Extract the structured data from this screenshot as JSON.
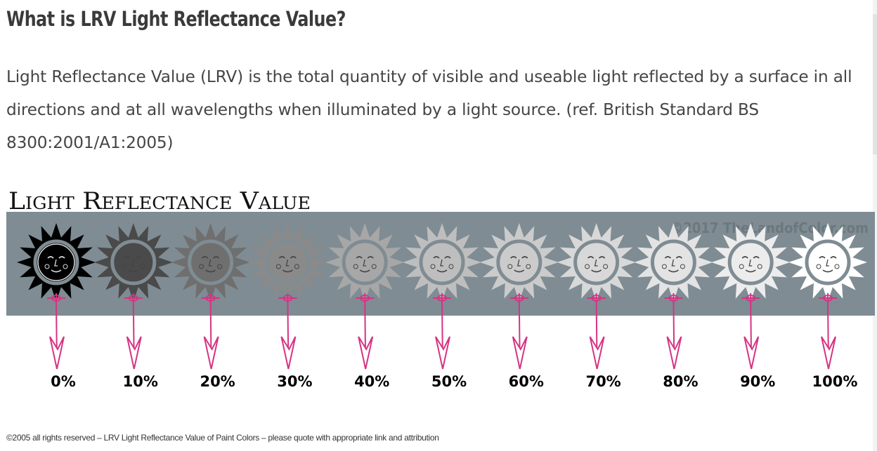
{
  "article": {
    "title": "What is LRV Light Reflectance Value?",
    "definition": "Light Reflectance Value (LRV) is the total quantity of visible and useable light reflected by a surface in all directions and at all wavelengths when illuminated by a light source. (ref. British Standard BS 8300:2001/A1:2005)"
  },
  "figure": {
    "heading": "Light Reflectance Value",
    "watermark": "©2017 TheLandofColor.com",
    "band_color": "#7f8c93",
    "arrow_color": "#d63384",
    "levels": [
      {
        "label": "0%",
        "value": 0,
        "fill": "#000000"
      },
      {
        "label": "10%",
        "value": 10,
        "fill": "#4a4a4a"
      },
      {
        "label": "20%",
        "value": 20,
        "fill": "#6f6f6f"
      },
      {
        "label": "30%",
        "value": 30,
        "fill": "#8a8a8a"
      },
      {
        "label": "40%",
        "value": 40,
        "fill": "#a7a7a7"
      },
      {
        "label": "50%",
        "value": 50,
        "fill": "#bebebe"
      },
      {
        "label": "60%",
        "value": 60,
        "fill": "#cbcbcb"
      },
      {
        "label": "70%",
        "value": 70,
        "fill": "#d8d8d8"
      },
      {
        "label": "80%",
        "value": 80,
        "fill": "#e3e3e3"
      },
      {
        "label": "90%",
        "value": 90,
        "fill": "#ececec"
      },
      {
        "label": "100%",
        "value": 100,
        "fill": "#ffffff"
      }
    ]
  },
  "footer": {
    "copyright": "©2005 all rights reserved – LRV Light Reflectance Value of Paint Colors – please quote with appropriate link and attribution"
  }
}
